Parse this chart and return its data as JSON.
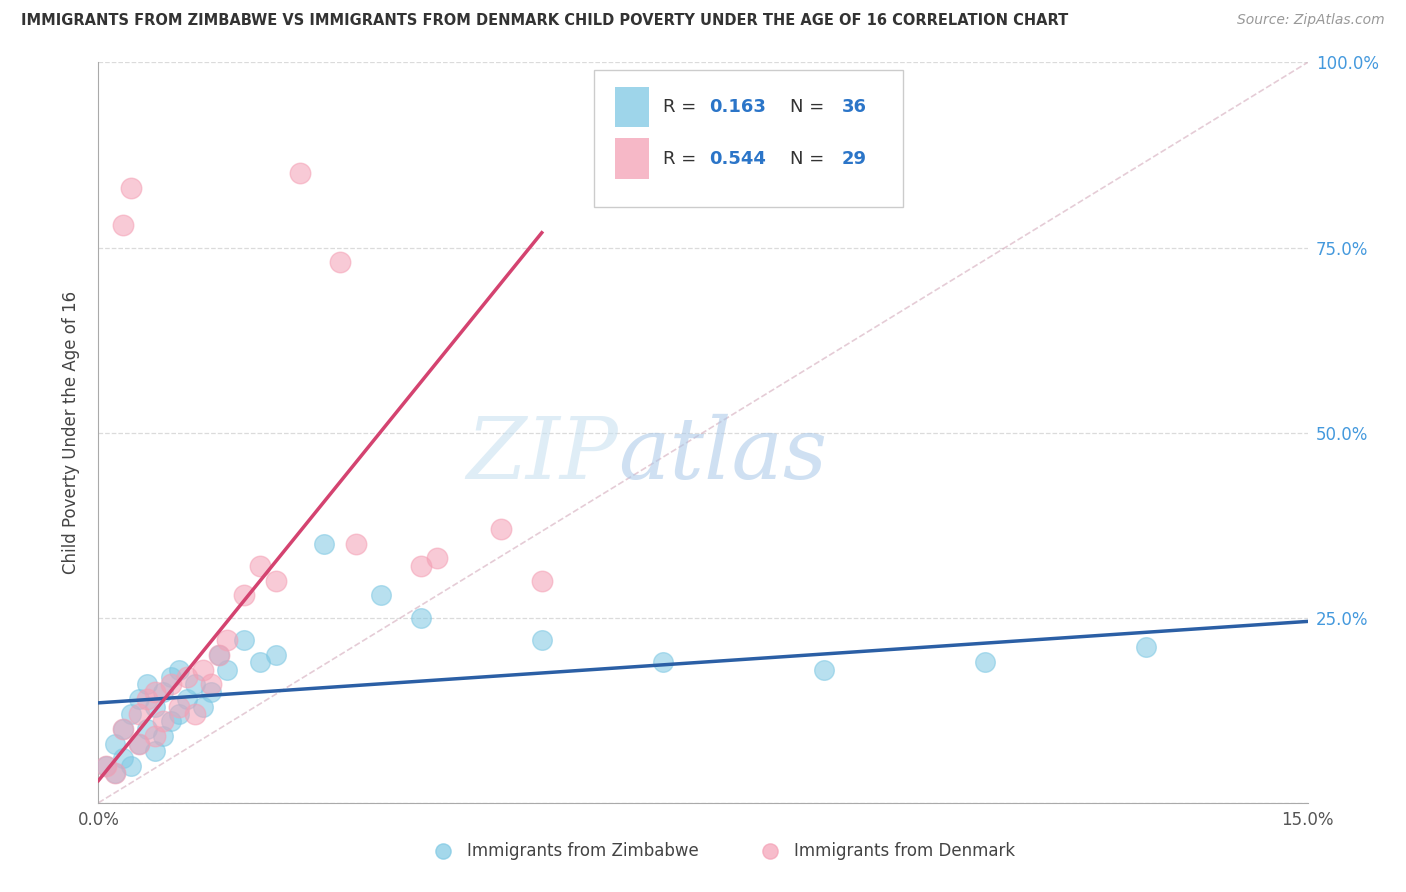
{
  "title": "IMMIGRANTS FROM ZIMBABWE VS IMMIGRANTS FROM DENMARK CHILD POVERTY UNDER THE AGE OF 16 CORRELATION CHART",
  "source": "Source: ZipAtlas.com",
  "ylabel": "Child Poverty Under the Age of 16",
  "xlim": [
    0.0,
    0.15
  ],
  "ylim": [
    0.0,
    1.0
  ],
  "zimbabwe_color": "#7ec8e3",
  "denmark_color": "#f4a0b5",
  "trend_zimbabwe_color": "#2b5fa5",
  "trend_denmark_color": "#d44370",
  "diag_color": "#d4aabb",
  "r_zimbabwe": 0.163,
  "n_zimbabwe": 36,
  "r_denmark": 0.544,
  "n_denmark": 29,
  "watermark_zip": "ZIP",
  "watermark_atlas": "atlas",
  "background_color": "#ffffff",
  "grid_color": "#cccccc",
  "tick_label_color": "#4499dd",
  "ylabel_color": "#444444",
  "title_color": "#333333",
  "source_color": "#999999",
  "zim_trend_x0": 0.0,
  "zim_trend_y0": 0.135,
  "zim_trend_x1": 0.15,
  "zim_trend_y1": 0.245,
  "den_trend_x0": 0.0,
  "den_trend_y0": 0.03,
  "den_trend_x1": 0.055,
  "den_trend_y1": 0.77
}
